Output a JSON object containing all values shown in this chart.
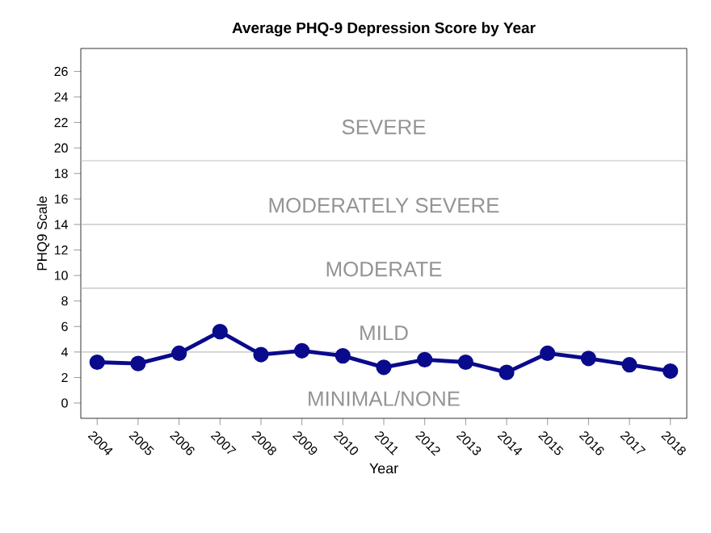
{
  "chart_data": {
    "type": "line",
    "title": "Average PHQ-9 Depression Score by Year",
    "xlabel": "Year",
    "ylabel": "PHQ9 Scale",
    "categories": [
      "2004",
      "2005",
      "2006",
      "2007",
      "2008",
      "2009",
      "2010",
      "2011",
      "2012",
      "2013",
      "2014",
      "2015",
      "2016",
      "2017",
      "2018"
    ],
    "series": [
      {
        "color": "#0a0a8c",
        "values": [
          3.2,
          3.1,
          3.9,
          5.6,
          3.8,
          4.1,
          3.7,
          2.8,
          3.4,
          3.2,
          2.4,
          3.9,
          3.5,
          3.0,
          2.5
        ]
      }
    ],
    "ylim": [
      -1.2,
      27.8
    ],
    "yticks": [
      0,
      2,
      4,
      6,
      8,
      10,
      12,
      14,
      16,
      18,
      20,
      22,
      24,
      26
    ],
    "marker": "circle",
    "line_style": "solid",
    "grid": false,
    "ref_lines": [
      {
        "axis": "y",
        "value": 4,
        "color": "#bfbfbf"
      },
      {
        "axis": "y",
        "value": 9,
        "color": "#bfbfbf"
      },
      {
        "axis": "y",
        "value": 14,
        "color": "#bfbfbf"
      },
      {
        "axis": "y",
        "value": 19,
        "color": "#bfbfbf"
      }
    ],
    "annotations": [
      "MINIMAL/NONE",
      "MILD",
      "MODERATE",
      "MODERATELY SEVERE",
      "SEVERE"
    ]
  }
}
